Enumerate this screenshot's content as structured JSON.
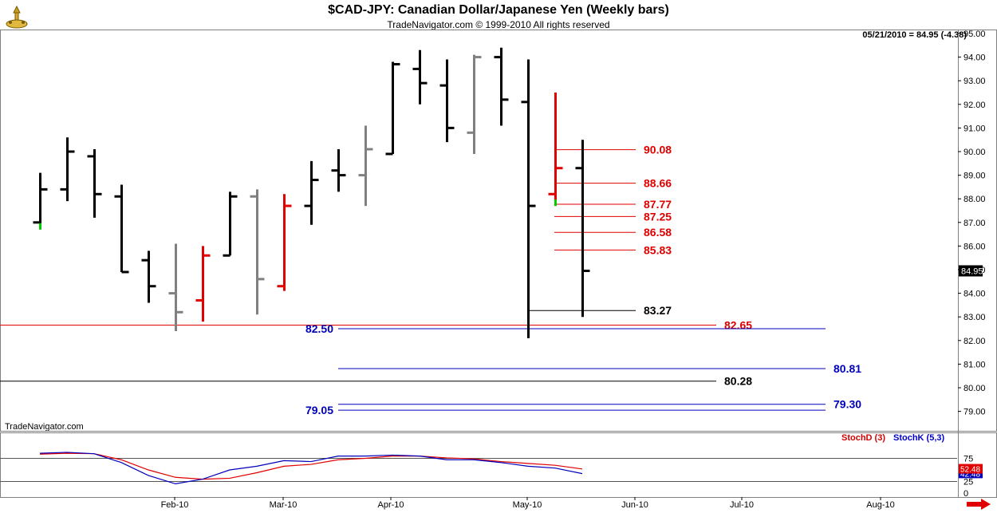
{
  "header": {
    "title": "$CAD-JPY:  Canadian Dollar/Japanese Yen  (Weekly bars)",
    "subtitle": "TradeNavigator.com © 1999-2010 All rights reserved",
    "last_quote": "05/21/2010 = 84.95 (-4.38)",
    "watermark": "TradeNavigator.com",
    "logo_icon": "trade-navigator-logo-icon"
  },
  "colors": {
    "up": "#000000",
    "down": "#000000",
    "gray": "#808080",
    "red": "#e00000",
    "green": "#00cc00",
    "blue": "#0000bb",
    "price_box": "#000000"
  },
  "chart_data": [
    {
      "type": "ohlc",
      "ylim": [
        78.5,
        95.2
      ],
      "yticks": [
        "79.00",
        "80.00",
        "81.00",
        "82.00",
        "83.00",
        "84.00",
        "85.00",
        "86.00",
        "87.00",
        "88.00",
        "89.00",
        "90.00",
        "91.00",
        "92.00",
        "93.00",
        "94.00",
        "95.00"
      ],
      "xlabels": [
        "Feb-10",
        "Mar-10",
        "Apr-10",
        "May-10",
        "Jun-10",
        "Jul-10",
        "Aug-10"
      ],
      "last_price_label": "84.95",
      "bars": [
        {
          "o": 87.0,
          "h": 89.1,
          "l": 86.7,
          "c": 88.4,
          "color": "black",
          "low_tick": "green"
        },
        {
          "o": 88.4,
          "h": 90.6,
          "l": 87.9,
          "c": 90.0,
          "color": "black"
        },
        {
          "o": 89.8,
          "h": 90.1,
          "l": 87.2,
          "c": 88.2,
          "color": "black"
        },
        {
          "o": 88.1,
          "h": 88.6,
          "l": 84.9,
          "c": 84.9,
          "color": "black"
        },
        {
          "o": 85.4,
          "h": 85.8,
          "l": 83.6,
          "c": 84.3,
          "color": "black"
        },
        {
          "o": 84.0,
          "h": 86.1,
          "l": 82.4,
          "c": 83.2,
          "color": "gray"
        },
        {
          "o": 83.7,
          "h": 86.0,
          "l": 82.8,
          "c": 85.6,
          "color": "red"
        },
        {
          "o": 85.6,
          "h": 88.3,
          "l": 85.6,
          "c": 88.1,
          "color": "black"
        },
        {
          "o": 88.1,
          "h": 88.4,
          "l": 83.1,
          "c": 84.6,
          "color": "gray"
        },
        {
          "o": 84.3,
          "h": 88.2,
          "l": 84.1,
          "c": 87.7,
          "color": "red"
        },
        {
          "o": 87.7,
          "h": 89.6,
          "l": 86.9,
          "c": 88.8,
          "color": "black"
        },
        {
          "o": 89.2,
          "h": 90.1,
          "l": 88.3,
          "c": 89.0,
          "color": "black"
        },
        {
          "o": 89.0,
          "h": 91.1,
          "l": 87.7,
          "c": 90.1,
          "color": "gray"
        },
        {
          "o": 89.9,
          "h": 93.8,
          "l": 89.9,
          "c": 93.7,
          "color": "black"
        },
        {
          "o": 93.5,
          "h": 94.3,
          "l": 92.0,
          "c": 92.9,
          "color": "black"
        },
        {
          "o": 92.8,
          "h": 93.9,
          "l": 90.4,
          "c": 91.0,
          "color": "black"
        },
        {
          "o": 90.8,
          "h": 94.1,
          "l": 89.9,
          "c": 94.0,
          "color": "gray"
        },
        {
          "o": 94.0,
          "h": 94.4,
          "l": 91.1,
          "c": 92.2,
          "color": "black"
        },
        {
          "o": 92.1,
          "h": 93.9,
          "l": 82.1,
          "c": 87.7,
          "color": "black"
        },
        {
          "o": 88.2,
          "h": 92.5,
          "l": 87.7,
          "c": 89.3,
          "color": "red",
          "low_tick": "green"
        },
        {
          "o": 89.3,
          "h": 90.5,
          "l": 83.0,
          "c": 84.95,
          "color": "black"
        }
      ],
      "levels": [
        {
          "value": 90.08,
          "label": "90.08",
          "color": "red"
        },
        {
          "value": 88.66,
          "label": "88.66",
          "color": "red"
        },
        {
          "value": 87.77,
          "label": "87.77",
          "color": "red"
        },
        {
          "value": 87.25,
          "label": "87.25",
          "color": "red"
        },
        {
          "value": 86.58,
          "label": "86.58",
          "color": "red"
        },
        {
          "value": 85.83,
          "label": "85.83",
          "color": "red"
        },
        {
          "value": 83.27,
          "label": "83.27",
          "color": "black"
        },
        {
          "value": 82.65,
          "label": "82.65",
          "color": "red"
        },
        {
          "value": 82.5,
          "label": "82.50",
          "color": "blue"
        },
        {
          "value": 80.81,
          "label": "80.81",
          "color": "blue"
        },
        {
          "value": 80.28,
          "label": "80.28",
          "color": "black"
        },
        {
          "value": 79.3,
          "label": "79.30",
          "color": "blue"
        },
        {
          "value": 79.05,
          "label": "79.05",
          "color": "blue"
        }
      ]
    },
    {
      "type": "line",
      "ylim": [
        0,
        100
      ],
      "yticks": [
        "0",
        "25",
        "50",
        "75"
      ],
      "reference_lines": [
        25,
        75
      ],
      "legend": [
        "StochD (3)",
        "StochK (5,3)"
      ],
      "series": [
        {
          "name": "StochD (3)",
          "color": "red",
          "values": [
            84,
            86,
            85,
            72,
            50,
            34,
            30,
            32,
            44,
            58,
            62,
            72,
            75,
            80,
            80,
            76,
            74,
            68,
            64,
            60,
            52
          ]
        },
        {
          "name": "StochK (5,3)",
          "color": "blue",
          "values": [
            86,
            88,
            85,
            66,
            38,
            20,
            30,
            50,
            58,
            70,
            68,
            80,
            80,
            82,
            80,
            72,
            72,
            66,
            58,
            54,
            42
          ]
        }
      ],
      "last_values": {
        "stochd": "52.48",
        "stochk": "42.48"
      }
    }
  ],
  "nav": {
    "scroll_right_icon": "scroll-right-arrow-icon"
  }
}
